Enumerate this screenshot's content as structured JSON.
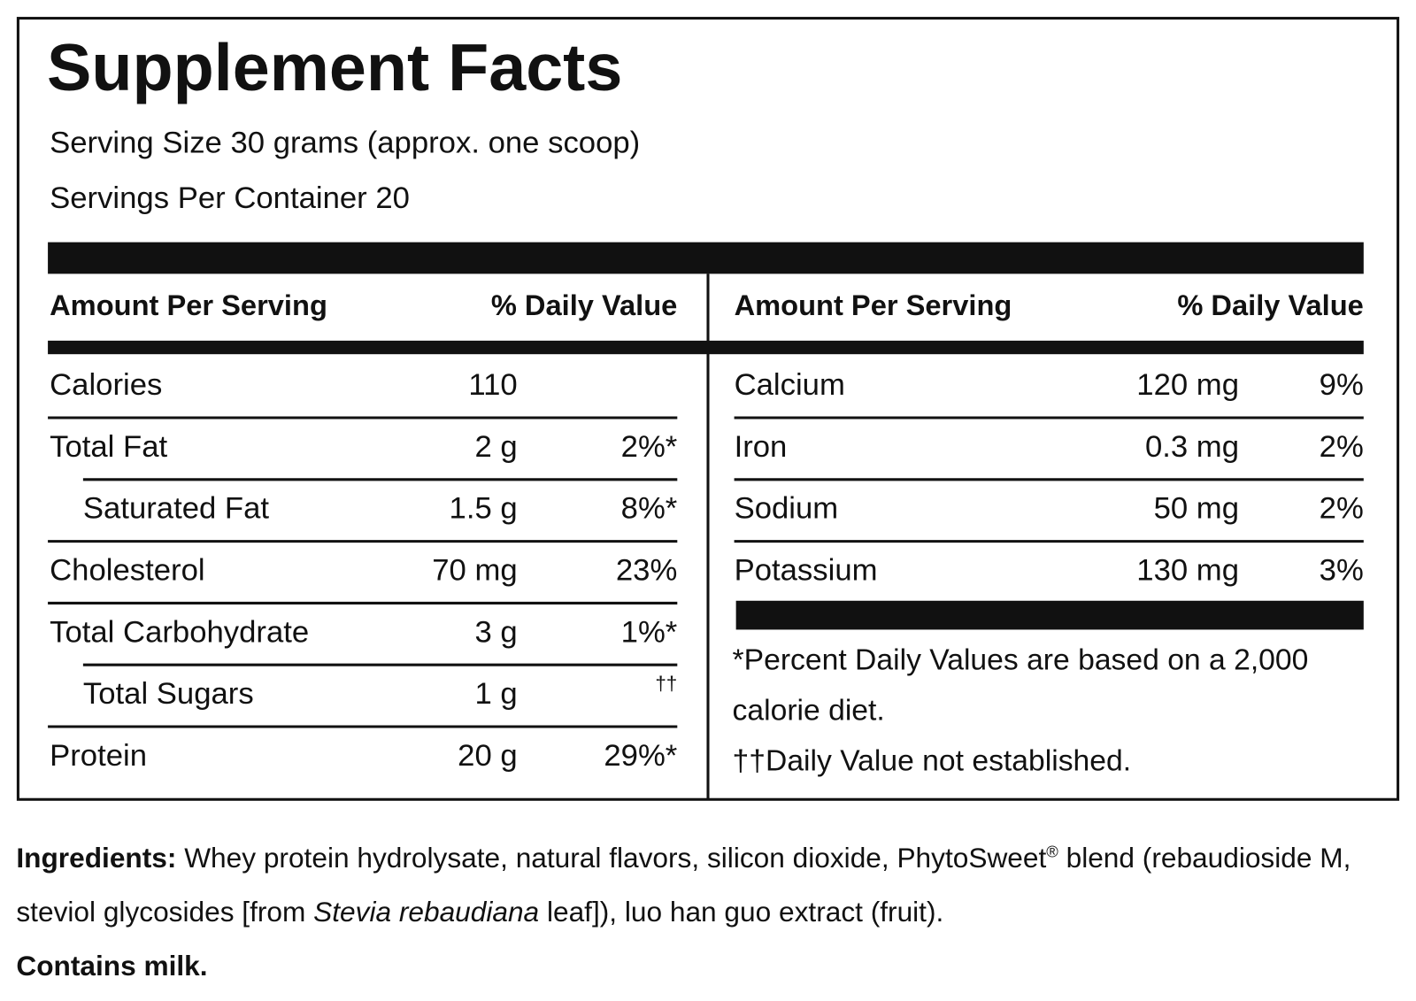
{
  "header": {
    "title": "Supplement Facts",
    "serving_size": "Serving Size 30 grams (approx. one scoop)",
    "servings_per_container": "Servings Per Container 20"
  },
  "table": {
    "left": {
      "columns": [
        "Amount Per Serving",
        "% Daily Value"
      ],
      "rows": [
        {
          "name": "Calories",
          "amount": "110"
        },
        {
          "name": "Total Fat",
          "amount": "2 g",
          "daily_value": "2%*"
        },
        {
          "name": "Saturated Fat",
          "amount": "1.5 g",
          "daily_value": "8%*",
          "indent": true
        },
        {
          "name": "Cholesterol",
          "amount": "70 mg",
          "daily_value": "23%"
        },
        {
          "name": "Total Carbohydrate",
          "amount": "3 g",
          "daily_value": "1%*"
        },
        {
          "name": "Total Sugars",
          "amount": "1 g",
          "daily_value": "††",
          "indent": true
        },
        {
          "name": "Protein",
          "amount": "20 g",
          "daily_value": "29%*"
        }
      ]
    },
    "right": {
      "columns": [
        "Amount Per Serving",
        "% Daily Value"
      ],
      "rows": [
        {
          "name": "Calcium",
          "amount": "120 mg",
          "daily_value": "9%"
        },
        {
          "name": "Iron",
          "amount": "0.3 mg",
          "daily_value": "2%"
        },
        {
          "name": "Sodium",
          "amount": "50 mg",
          "daily_value": "2%"
        },
        {
          "name": "Potassium",
          "amount": "130 mg",
          "daily_value": "3%"
        }
      ]
    },
    "footnotes": [
      "*Percent Daily Values are based on a 2,000 calorie diet.",
      "††Daily Value not established."
    ]
  },
  "ingredients": {
    "label": "Ingredients:",
    "parts": [
      "Whey protein hydrolysate, natural flavors, silicon dioxide, PhytoSweet",
      "®",
      " blend (rebaudioside M, steviol glycosides [from ",
      "Stevia rebaudiana",
      " leaf]), luo han guo extract (fruit)."
    ],
    "allergen": "Contains milk."
  }
}
